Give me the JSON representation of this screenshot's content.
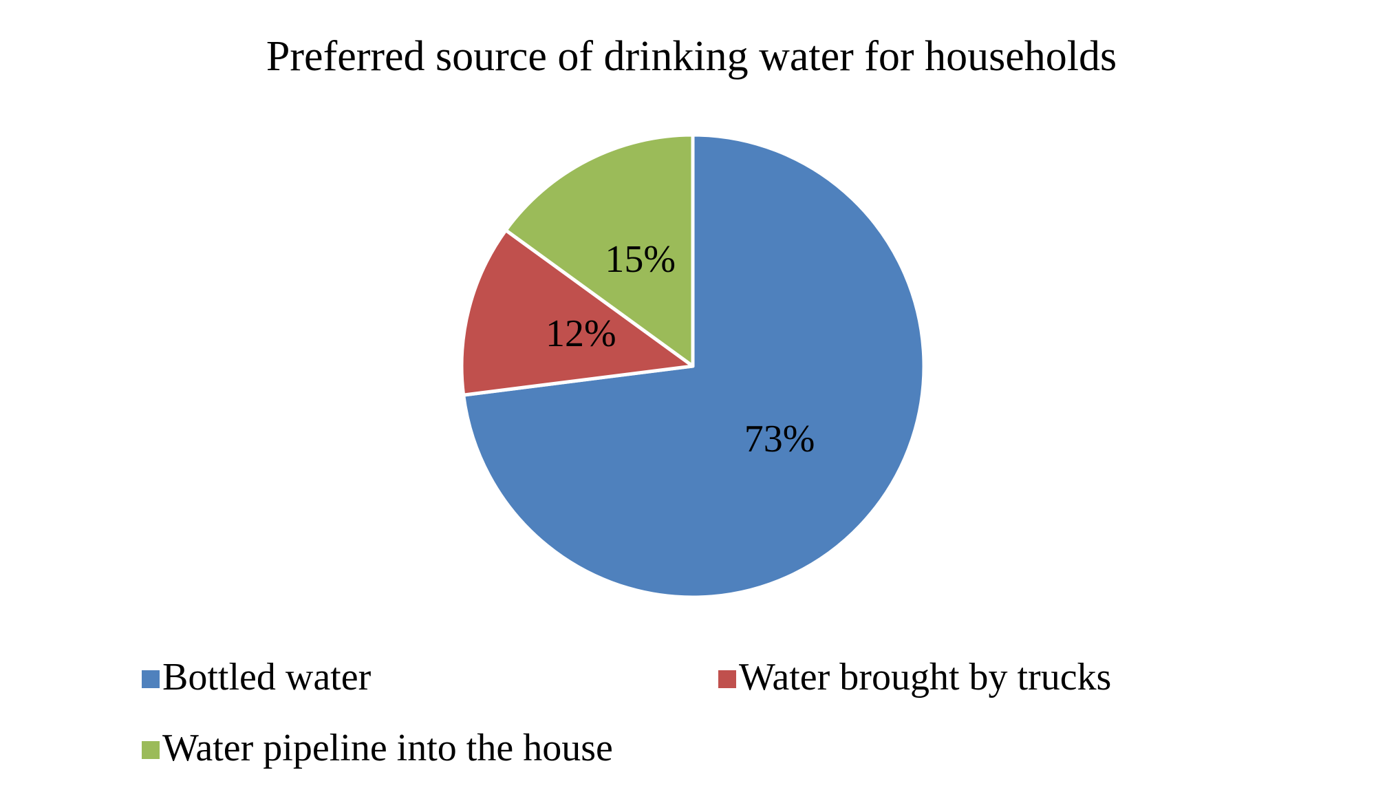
{
  "chart_data": {
    "type": "pie",
    "title": "Preferred source of drinking water for households",
    "categories": [
      "Bottled water",
      "Water brought by trucks",
      "Water pipeline into the house"
    ],
    "values": [
      73,
      12,
      15
    ],
    "value_labels": [
      "73%",
      "12%",
      "15%"
    ],
    "colors": [
      "#4f81bd",
      "#c0504d",
      "#9bbb59"
    ],
    "legend": "bottom"
  }
}
